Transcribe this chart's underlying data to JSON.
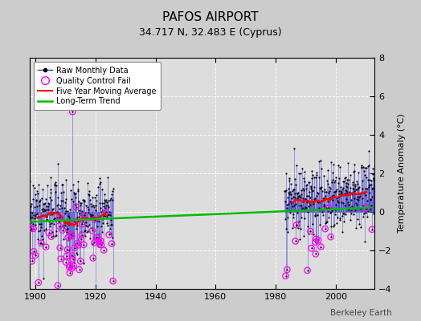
{
  "title": "PAFOS AIRPORT",
  "subtitle": "34.717 N, 32.483 E (Cyprus)",
  "ylabel": "Temperature Anomaly (°C)",
  "credit": "Berkeley Earth",
  "xlim": [
    1898,
    2013
  ],
  "ylim": [
    -4,
    8
  ],
  "yticks": [
    -4,
    -2,
    0,
    2,
    4,
    6,
    8
  ],
  "xticks": [
    1900,
    1920,
    1940,
    1960,
    1980,
    2000
  ],
  "bg_color": "#cccccc",
  "plot_bg_color": "#dddddd",
  "raw_line_color": "#3333cc",
  "raw_dot_color": "#000000",
  "qc_color": "#ff00ff",
  "ma_color": "#ff0000",
  "trend_color": "#00bb00",
  "period1_start": 1898,
  "period1_end": 1925,
  "period2_start": 1983,
  "period2_end": 2012,
  "trend_x": [
    1898,
    2012
  ],
  "trend_y": [
    -0.52,
    0.22
  ],
  "spike_year": 1912,
  "spike_val": 5.2,
  "title_fontsize": 11,
  "subtitle_fontsize": 9,
  "tick_labelsize": 8,
  "ylabel_fontsize": 8
}
